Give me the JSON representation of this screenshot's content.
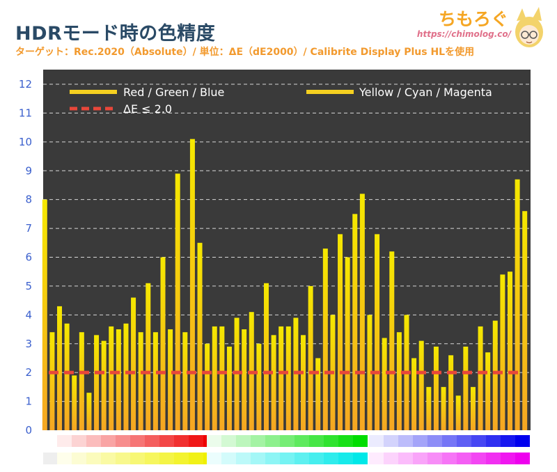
{
  "header": {
    "title": "HDRモード時の色精度",
    "subtitle": "ターゲット：Rec.2020（Absolute）/ 単位：ΔE（dE2000）/ Calibrite Display Plus HLを使用",
    "logo_text": "ちもろぐ",
    "logo_url": "https://chimolog.co/"
  },
  "chart_data": {
    "type": "bar",
    "title": "HDRモード時の色精度",
    "ylim": [
      0,
      12
    ],
    "yticks": [
      0,
      1,
      2,
      3,
      4,
      5,
      6,
      7,
      8,
      9,
      10,
      11,
      12
    ],
    "grid": true,
    "legend_placement": "top",
    "legend": [
      {
        "label": "Red / Green / Blue",
        "style": "bar",
        "color": "#f5d020"
      },
      {
        "label": "Yellow / Cyan / Magenta",
        "style": "bar",
        "color": "#f5d020"
      },
      {
        "label": "ΔE ≤ 2.0",
        "style": "dashed",
        "color": "#e8473a"
      }
    ],
    "threshold": 2.0,
    "values": [
      8.0,
      3.4,
      4.3,
      3.7,
      1.9,
      3.4,
      1.3,
      3.3,
      3.1,
      3.6,
      3.5,
      3.7,
      4.6,
      3.4,
      5.1,
      3.4,
      6.0,
      3.5,
      8.9,
      3.4,
      10.1,
      6.5,
      3.0,
      3.6,
      3.6,
      2.9,
      3.9,
      3.5,
      4.1,
      3.0,
      5.1,
      3.3,
      3.6,
      3.6,
      3.9,
      3.3,
      5.0,
      2.5,
      6.3,
      4.0,
      6.8,
      6.0,
      7.5,
      8.2,
      4.0,
      6.8,
      3.2,
      6.2,
      3.4,
      4.0,
      2.5,
      3.1,
      1.5,
      2.9,
      1.5,
      2.6,
      1.2,
      2.9,
      1.5,
      3.6,
      2.7,
      3.8,
      5.4,
      5.5,
      8.7,
      7.6
    ]
  },
  "colors": {
    "plot_bg": "#3a3a3a",
    "bar_top": "#f5e800",
    "bar_bottom": "#f5a623",
    "threshold_line": "#e8473a",
    "axis_label": "#3a5fcd",
    "title": "#2a4a66",
    "subtitle": "#f29a2e"
  },
  "swatches": {
    "row1": [
      {
        "start": "#ffffff",
        "end": "#ee0000",
        "count": 11
      },
      {
        "start": "#ffffff",
        "end": "#00dd00",
        "count": 11
      },
      {
        "start": "#ffffff",
        "end": "#0000ee",
        "count": 11
      }
    ],
    "row2": [
      {
        "start": "#ffffff",
        "end": "#f0f000",
        "count": 11
      },
      {
        "start": "#ffffff",
        "end": "#00e8e8",
        "count": 11
      },
      {
        "start": "#ffffff",
        "end": "#ee00ee",
        "count": 11
      }
    ]
  }
}
